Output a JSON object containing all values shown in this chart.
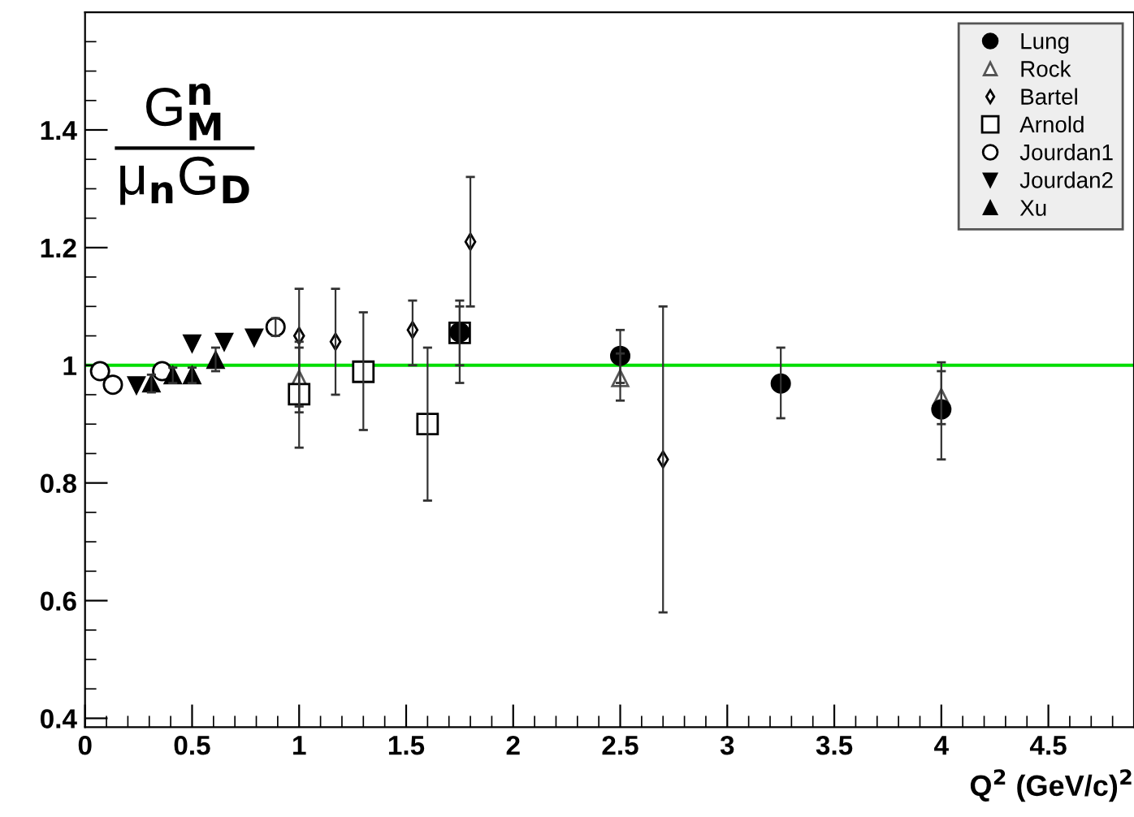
{
  "chart_data": {
    "type": "scatter",
    "xlabel": "Q$^{2}$ (GeV/c)$^{2}$",
    "annotations": [
      "G$^{n}$$_{M}$",
      "μ$_{n}$G$_{D}$"
    ],
    "xlim": [
      0,
      4.9
    ],
    "ylim": [
      0.385,
      1.6
    ],
    "xticks": [
      0,
      0.5,
      1,
      1.5,
      2,
      2.5,
      3,
      3.5,
      4,
      4.5
    ],
    "yticks": [
      0.4,
      0.6,
      0.8,
      1,
      1.2,
      1.4
    ],
    "grid": false,
    "legend": "top right",
    "ref_lines": [
      {
        "axis": "y",
        "value": 1,
        "color": "#00dd00",
        "line_style": "solid"
      }
    ],
    "series": [
      {
        "name": "Lung",
        "color": "#000000",
        "marker": "circle",
        "x": [
          1.75,
          2.5,
          3.25,
          4.0
        ],
        "values": [
          1.056,
          1.016,
          0.969,
          0.925
        ],
        "errors": [
          [
            0.97,
            1.1
          ],
          [
            0.97,
            1.06
          ],
          [
            0.91,
            1.03
          ],
          [
            0.84,
            1.005
          ]
        ]
      },
      {
        "name": "Rock",
        "color": "#555555",
        "marker": "triangle_open",
        "x": [
          1.0,
          2.5,
          4.0
        ],
        "values": [
          0.977,
          0.978,
          0.946
        ],
        "errors": [
          [
            0.93,
            1.03
          ],
          [
            0.94,
            1.02
          ],
          [
            0.9,
            0.99
          ]
        ]
      },
      {
        "name": "Bartel",
        "color": "#000000",
        "marker": "diamond_open",
        "x": [
          1.0,
          1.17,
          1.53,
          1.8,
          2.7
        ],
        "values": [
          1.05,
          1.04,
          1.06,
          1.21,
          0.84
        ],
        "errors": [
          [
            0.92,
            1.13
          ],
          [
            0.95,
            1.13
          ],
          [
            1.0,
            1.11
          ],
          [
            1.1,
            1.32
          ],
          [
            0.58,
            1.1
          ]
        ]
      },
      {
        "name": "Arnold",
        "color": "#000000",
        "marker": "square_open",
        "x": [
          1.0,
          1.3,
          1.6,
          1.75
        ],
        "values": [
          0.951,
          0.989,
          0.9,
          1.055
        ],
        "errors": [
          [
            0.86,
            1.04
          ],
          [
            0.89,
            1.09
          ],
          [
            0.77,
            1.03
          ],
          [
            1.0,
            1.11
          ]
        ]
      },
      {
        "name": "Jourdan1",
        "color": "#000000",
        "marker": "circle_open",
        "x": [
          0.07,
          0.13,
          0.36,
          0.89
        ],
        "values": [
          0.99,
          0.967,
          0.99,
          1.065
        ],
        "errors": [
          null,
          null,
          null,
          [
            1.05,
            1.08
          ]
        ]
      },
      {
        "name": "Jourdan2",
        "color": "#000000",
        "marker": "triangle_down",
        "x": [
          0.24,
          0.5,
          0.65,
          0.79
        ],
        "values": [
          0.966,
          1.037,
          1.04,
          1.047
        ]
      },
      {
        "name": "Xu",
        "color": "#000000",
        "marker": "triangle",
        "x": [
          0.31,
          0.41,
          0.5,
          0.61
        ],
        "values": [
          0.969,
          0.983,
          0.983,
          1.009
        ],
        "errors": [
          [
            0.954,
            0.984
          ],
          [
            0.97,
            0.996
          ],
          [
            0.97,
            0.996
          ],
          [
            0.99,
            1.03
          ]
        ]
      }
    ]
  }
}
